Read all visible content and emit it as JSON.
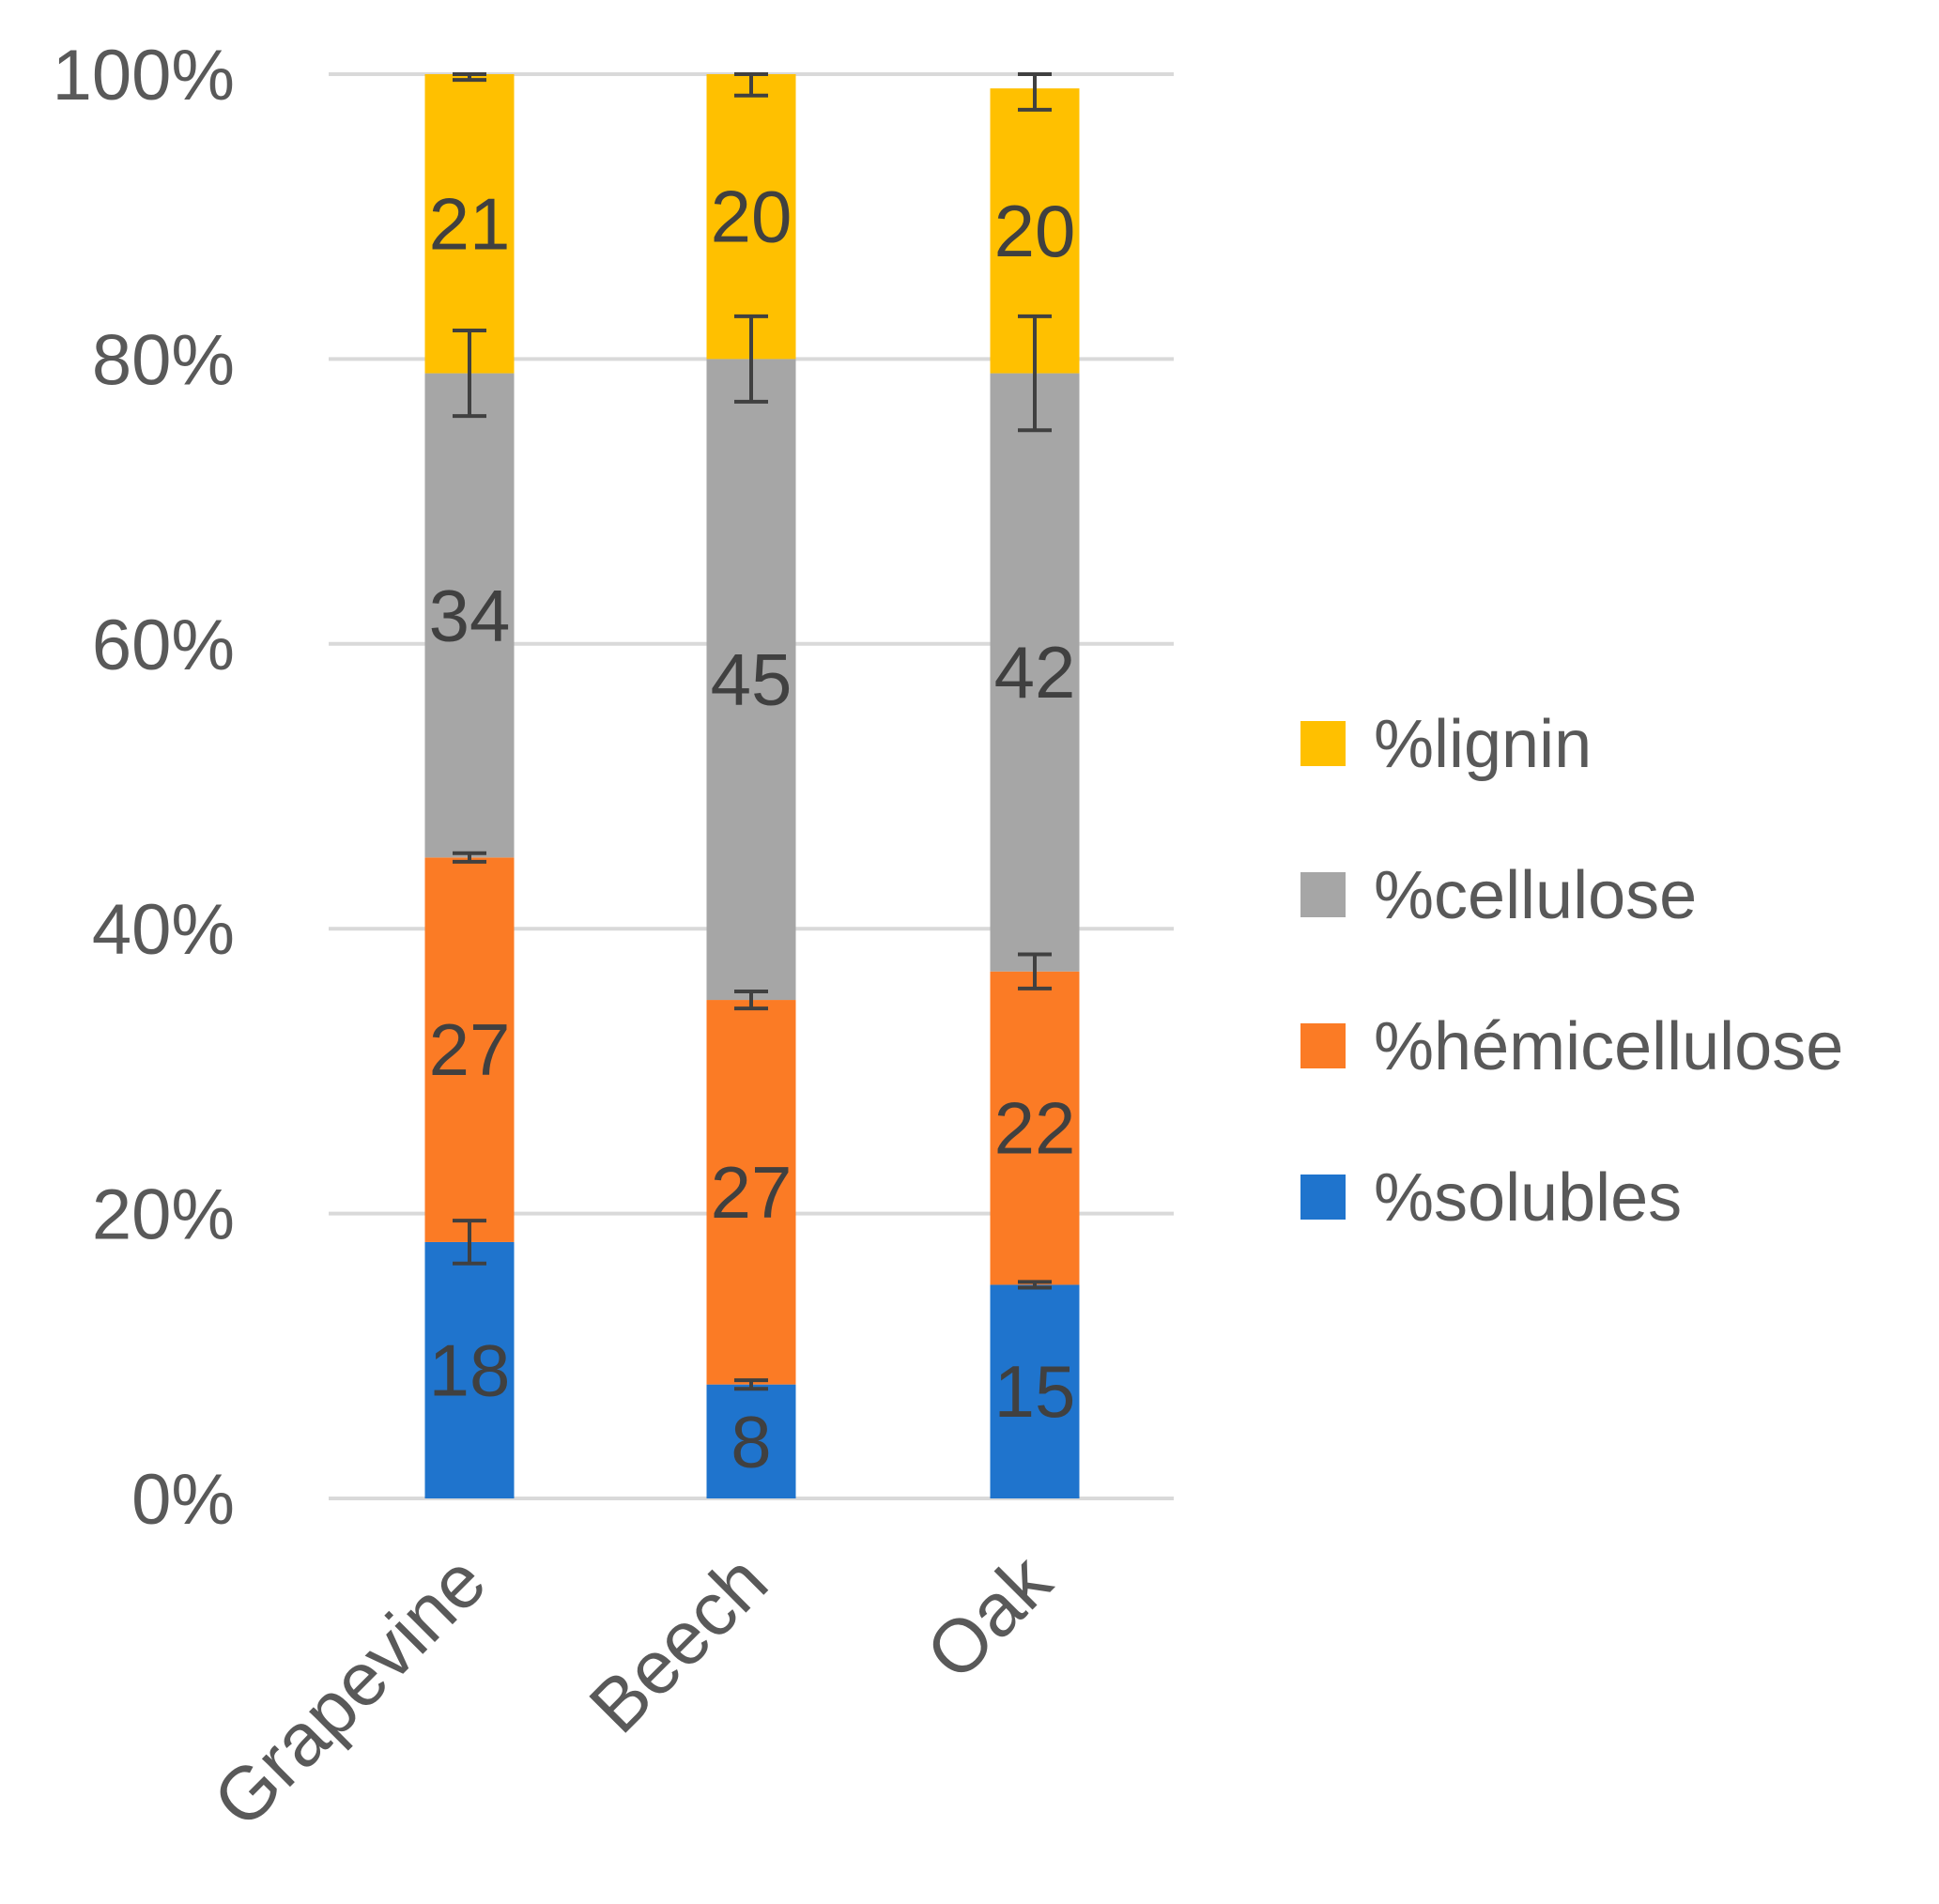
{
  "chart_data": {
    "type": "bar",
    "stacked": true,
    "normalized_percent": true,
    "categories": [
      "Grapevine",
      "Beech",
      "Oak"
    ],
    "series": [
      {
        "name": "%solubles",
        "color": "#1f74cd",
        "values": [
          18,
          8,
          15
        ],
        "error": [
          1.5,
          0.3,
          0.2
        ]
      },
      {
        "name": "%hémicellulose",
        "color": "#fb7b25",
        "values": [
          27,
          27,
          22
        ],
        "error": [
          0.3,
          0.6,
          1.2
        ]
      },
      {
        "name": "%cellulose",
        "color": "#a6a6a6",
        "values": [
          34,
          45,
          42
        ],
        "error": [
          3,
          3,
          4
        ]
      },
      {
        "name": "%lignin",
        "color": "#ffc000",
        "values": [
          21,
          20,
          20
        ],
        "error": [
          0.4,
          1.5,
          1.5
        ]
      }
    ],
    "data_labels": [
      [
        "18",
        "8",
        "15"
      ],
      [
        "27",
        "27",
        "22"
      ],
      [
        "34",
        "45",
        "42"
      ],
      [
        "21",
        "20",
        "20"
      ]
    ],
    "yticks": [
      "0%",
      "20%",
      "40%",
      "60%",
      "80%",
      "100%"
    ],
    "ylim": [
      0,
      100
    ],
    "grid": true,
    "legend_position": "right",
    "legend_order": [
      "%lignin",
      "%cellulose",
      "%hémicellulose",
      "%solubles"
    ],
    "title": "",
    "xlabel": "",
    "ylabel": ""
  }
}
